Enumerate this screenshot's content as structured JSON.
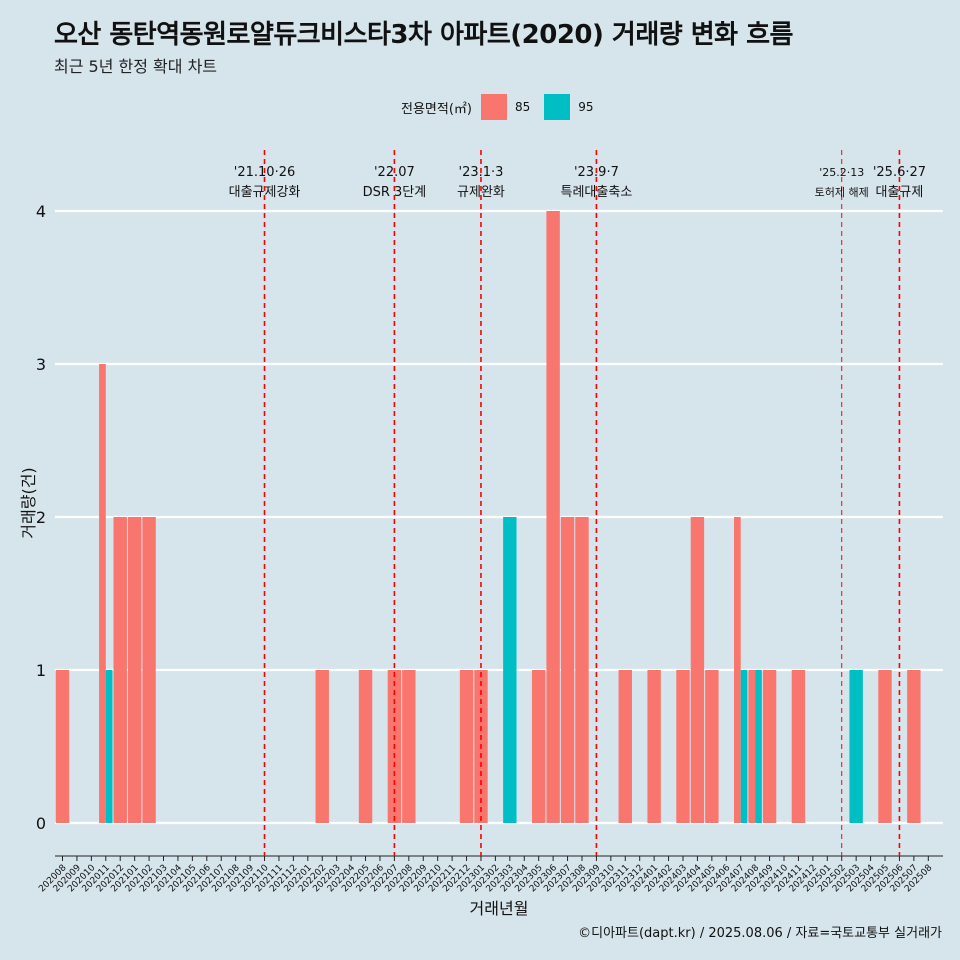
{
  "header": {
    "title": "오산 동탄역동원로얄듀크비스타3차 아파트(2020) 거래량 변화 흐름",
    "subtitle": "최근 5년 한정 확대 차트"
  },
  "legend": {
    "title": "전용면적(㎡)",
    "items": [
      {
        "label": "85",
        "color": "#f8766d"
      },
      {
        "label": "95",
        "color": "#00bfc4"
      }
    ]
  },
  "caption": "©디아파트(dapt.kr) / 2025.08.06 / 자료=국토교통부 실거래가",
  "chart_data": {
    "type": "bar",
    "xlabel": "거래년월",
    "ylabel": "거래량(건)",
    "ylim": [
      0,
      4
    ],
    "y_ticks": [
      0,
      1,
      2,
      3,
      4
    ],
    "categories": [
      "202008",
      "202009",
      "202010",
      "202011",
      "202012",
      "202101",
      "202102",
      "202103",
      "202104",
      "202105",
      "202106",
      "202107",
      "202108",
      "202109",
      "202110",
      "202111",
      "202112",
      "202201",
      "202202",
      "202203",
      "202204",
      "202205",
      "202206",
      "202207",
      "202208",
      "202209",
      "202210",
      "202211",
      "202212",
      "202301",
      "202302",
      "202303",
      "202304",
      "202305",
      "202306",
      "202307",
      "202308",
      "202309",
      "202310",
      "202311",
      "202312",
      "202401",
      "202402",
      "202403",
      "202404",
      "202405",
      "202406",
      "202407",
      "202408",
      "202409",
      "202410",
      "202411",
      "202412",
      "202501",
      "202502",
      "202503",
      "202504",
      "202505",
      "202506",
      "202507",
      "202508"
    ],
    "series": [
      {
        "name": "85",
        "color": "#f8766d",
        "values": [
          1,
          0,
          0,
          3,
          2,
          2,
          2,
          0,
          0,
          0,
          0,
          0,
          0,
          0,
          0,
          0,
          0,
          0,
          1,
          0,
          0,
          1,
          0,
          1,
          1,
          0,
          0,
          0,
          1,
          1,
          0,
          0,
          0,
          1,
          4,
          2,
          2,
          0,
          0,
          1,
          0,
          1,
          0,
          1,
          2,
          1,
          0,
          2,
          1,
          1,
          0,
          1,
          0,
          0,
          0,
          0,
          0,
          1,
          0,
          1,
          0
        ]
      },
      {
        "name": "95",
        "color": "#00bfc4",
        "values": [
          0,
          0,
          0,
          1,
          0,
          0,
          0,
          0,
          0,
          0,
          0,
          0,
          0,
          0,
          0,
          0,
          0,
          0,
          0,
          0,
          0,
          0,
          0,
          0,
          0,
          0,
          0,
          0,
          0,
          0,
          0,
          2,
          0,
          0,
          0,
          0,
          0,
          0,
          0,
          0,
          0,
          0,
          0,
          0,
          0,
          0,
          0,
          1,
          1,
          0,
          0,
          0,
          0,
          0,
          0,
          1,
          0,
          0,
          0,
          0,
          0
        ]
      }
    ],
    "grid": true,
    "legend_position": "top",
    "annotations": [
      {
        "date": "'21.10·26",
        "label": "대출규제강화",
        "x_index": 14.0,
        "style": "major"
      },
      {
        "date": "'22.07",
        "label": "DSR 3단계",
        "x_index": 23.0,
        "style": "major"
      },
      {
        "date": "'23.1·3",
        "label": "규제완화",
        "x_index": 29.0,
        "style": "major"
      },
      {
        "date": "'23.9·7",
        "label": "특례대출축소",
        "x_index": 37.0,
        "style": "major"
      },
      {
        "date": "'25.2·13",
        "label": "토허제 해제",
        "x_index": 54.0,
        "style": "minor"
      },
      {
        "date": "'25.6·27",
        "label": "대출규제",
        "x_index": 58.0,
        "style": "major"
      }
    ]
  }
}
